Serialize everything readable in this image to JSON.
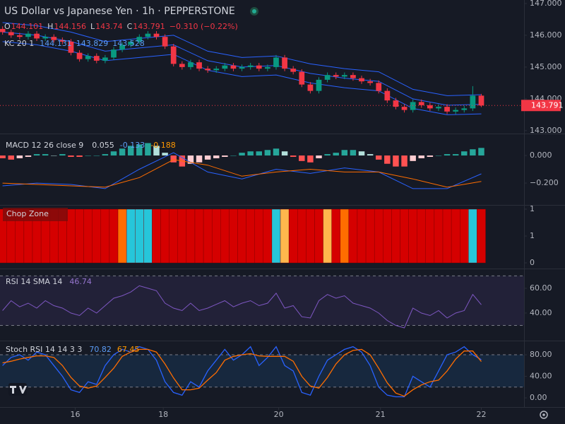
{
  "chart_data": [
    {
      "type": "candlestick",
      "title": "US Dollar vs Japanese Yen · 1h · PEPPERSTONE",
      "ohlc_labels": [
        "O",
        "H",
        "L",
        "C"
      ],
      "change": "−0.310 (−0.22%)",
      "up_color": "#089981",
      "down_color": "#f23645",
      "open": [
        146.2,
        146.1,
        146.0,
        145.95,
        146.05,
        145.9,
        145.95,
        145.85,
        145.8,
        145.45,
        145.25,
        145.35,
        145.2,
        145.3,
        145.55,
        145.7,
        145.8,
        145.95,
        146.05,
        145.95,
        145.65,
        145.1,
        145.0,
        145.15,
        144.95,
        144.9,
        144.95,
        145.05,
        144.95,
        145.0,
        145.05,
        144.95,
        145.0,
        145.3,
        144.95,
        144.85,
        144.45,
        144.25,
        144.6,
        144.75,
        144.7,
        144.75,
        144.65,
        144.55,
        144.5,
        144.25,
        143.95,
        143.75,
        143.65,
        143.9,
        143.8,
        143.7,
        143.75,
        143.6,
        143.65,
        143.7,
        144.101
      ],
      "high": [
        146.28,
        146.18,
        146.08,
        146.13,
        146.13,
        146.03,
        146.03,
        145.93,
        145.88,
        145.53,
        145.43,
        145.43,
        145.38,
        145.63,
        145.78,
        145.88,
        146.03,
        146.13,
        146.13,
        146.03,
        145.73,
        145.18,
        145.23,
        145.23,
        145.03,
        145.03,
        145.13,
        145.13,
        145.08,
        145.13,
        145.13,
        145.08,
        145.38,
        145.38,
        145.03,
        144.93,
        144.53,
        144.68,
        144.83,
        144.83,
        144.83,
        144.83,
        144.73,
        144.63,
        144.58,
        144.33,
        144.03,
        143.83,
        143.98,
        143.98,
        143.88,
        143.83,
        143.83,
        143.73,
        143.78,
        144.4,
        144.156
      ],
      "low": [
        146.02,
        145.92,
        145.87,
        145.87,
        145.82,
        145.82,
        145.77,
        145.72,
        145.37,
        145.17,
        145.17,
        145.12,
        145.12,
        145.22,
        145.47,
        145.62,
        145.72,
        145.87,
        145.87,
        145.57,
        145.02,
        144.92,
        144.92,
        144.87,
        144.82,
        144.82,
        144.87,
        144.87,
        144.87,
        144.92,
        144.87,
        144.87,
        144.92,
        144.87,
        144.77,
        144.37,
        144.17,
        144.17,
        144.52,
        144.62,
        144.62,
        144.57,
        144.47,
        144.42,
        144.17,
        143.87,
        143.67,
        143.57,
        143.57,
        143.72,
        143.62,
        143.62,
        143.52,
        143.52,
        143.57,
        143.62,
        143.74
      ],
      "close": [
        146.1,
        146.0,
        145.95,
        146.05,
        145.9,
        145.95,
        145.85,
        145.8,
        145.45,
        145.25,
        145.35,
        145.2,
        145.3,
        145.55,
        145.7,
        145.8,
        145.95,
        146.05,
        145.95,
        145.65,
        145.1,
        145.0,
        145.15,
        144.95,
        144.9,
        144.95,
        145.05,
        144.95,
        145.0,
        145.05,
        144.95,
        145.0,
        145.3,
        144.95,
        144.85,
        144.45,
        144.25,
        144.6,
        144.75,
        144.7,
        144.75,
        144.65,
        144.55,
        144.5,
        144.25,
        143.95,
        143.75,
        143.65,
        143.9,
        143.8,
        143.7,
        143.75,
        143.6,
        143.65,
        143.7,
        144.1,
        143.791
      ],
      "overlay": {
        "label": "KC 20 1",
        "x": [
          0,
          4,
          8,
          12,
          16,
          20,
          24,
          28,
          32,
          36,
          40,
          44,
          48,
          52,
          56
        ],
        "series": [
          {
            "color": "#2962ff",
            "values": [
              146.4,
              146.3,
              146.1,
              145.8,
              145.9,
              146.0,
              145.5,
              145.3,
              145.35,
              145.1,
              144.95,
              144.85,
              144.3,
              144.1,
              144.131
            ]
          },
          {
            "color": "#2962ff",
            "values": [
              146.1,
              146.0,
              145.8,
              145.5,
              145.6,
              145.7,
              145.2,
              145.0,
              145.05,
              144.8,
              144.65,
              144.55,
              144.0,
              143.8,
              143.829
            ]
          },
          {
            "color": "#2962ff",
            "values": [
              145.8,
              145.7,
              145.5,
              145.2,
              145.3,
              145.4,
              144.9,
              144.7,
              144.75,
              144.5,
              144.35,
              144.25,
              143.7,
              143.5,
              143.528
            ]
          }
        ]
      },
      "xlim": [
        -0.3,
        61
      ],
      "xticks": [
        {
          "value": 8.5,
          "label": "16"
        },
        {
          "value": 18.8,
          "label": "18"
        },
        {
          "value": 32.3,
          "label": "20"
        },
        {
          "value": 44.2,
          "label": "21"
        },
        {
          "value": 56,
          "label": "22"
        }
      ],
      "ylim": [
        142.93,
        147.11
      ],
      "yticks": [
        {
          "value": 147,
          "label": "147.000"
        },
        {
          "value": 146,
          "label": "146.000"
        },
        {
          "value": 145,
          "label": "145.000"
        },
        {
          "value": 144,
          "label": "144.000"
        },
        {
          "value": 143,
          "label": "143.000"
        }
      ]
    },
    {
      "type": "macd",
      "label": "MACD 12 26 close 9",
      "histogram": [
        -0.02,
        -0.03,
        -0.02,
        -0.01,
        0.01,
        0.01,
        0.0,
        0.01,
        -0.01,
        -0.01,
        0.0,
        0.0,
        0.01,
        0.03,
        0.05,
        0.07,
        0.08,
        0.09,
        0.07,
        0.02,
        -0.05,
        -0.08,
        -0.06,
        -0.05,
        -0.03,
        -0.02,
        -0.01,
        0.0,
        0.02,
        0.03,
        0.03,
        0.04,
        0.05,
        0.03,
        -0.01,
        -0.04,
        -0.05,
        -0.02,
        0.01,
        0.02,
        0.04,
        0.04,
        0.03,
        0.01,
        -0.03,
        -0.06,
        -0.08,
        -0.08,
        -0.04,
        -0.02,
        -0.01,
        0.0,
        0.01,
        0.01,
        0.03,
        0.045,
        0.055
      ],
      "x": [
        0,
        4,
        8,
        12,
        16,
        20,
        24,
        28,
        32,
        36,
        40,
        44,
        48,
        52,
        56
      ],
      "series": [
        {
          "color": "#2962ff",
          "values": [
            -0.22,
            -0.2,
            -0.21,
            -0.24,
            -0.1,
            0.02,
            -0.12,
            -0.17,
            -0.1,
            -0.13,
            -0.09,
            -0.12,
            -0.24,
            -0.24,
            -0.133
          ]
        },
        {
          "color": "#ff6d00",
          "values": [
            -0.2,
            -0.21,
            -0.22,
            -0.23,
            -0.16,
            -0.03,
            -0.07,
            -0.15,
            -0.12,
            -0.1,
            -0.12,
            -0.12,
            -0.17,
            -0.23,
            -0.188
          ]
        }
      ],
      "ylim": [
        -0.333,
        0.154
      ],
      "yticks": [
        {
          "value": 0,
          "label": "0.000"
        },
        {
          "value": -0.2,
          "label": "−0.200"
        }
      ]
    },
    {
      "type": "chop",
      "label": "Chop Zone",
      "values": [
        1,
        1,
        1,
        1,
        1,
        1,
        1,
        1,
        1,
        1,
        1,
        1,
        1,
        1,
        1,
        1,
        1,
        1,
        1,
        1,
        1,
        1,
        1,
        1,
        1,
        1,
        1,
        1,
        1,
        1,
        1,
        1,
        1,
        1,
        1,
        1,
        1,
        1,
        1,
        1,
        1,
        1,
        1,
        1,
        1,
        1,
        1,
        1,
        1,
        1,
        1,
        1,
        1,
        1,
        1,
        1,
        1
      ],
      "colors": [
        "#d50000",
        "#d50000",
        "#d50000",
        "#d50000",
        "#d50000",
        "#d50000",
        "#d50000",
        "#d50000",
        "#d50000",
        "#d50000",
        "#d50000",
        "#d50000",
        "#d50000",
        "#d50000",
        "#ff6d00",
        "#26c6da",
        "#26c6da",
        "#26c6da",
        "#d50000",
        "#d50000",
        "#d50000",
        "#d50000",
        "#d50000",
        "#d50000",
        "#d50000",
        "#d50000",
        "#d50000",
        "#d50000",
        "#d50000",
        "#d50000",
        "#d50000",
        "#d50000",
        "#26c6da",
        "#ffb74d",
        "#d50000",
        "#d50000",
        "#d50000",
        "#d50000",
        "#ffb74d",
        "#d50000",
        "#ff6d00",
        "#d50000",
        "#d50000",
        "#d50000",
        "#d50000",
        "#d50000",
        "#d50000",
        "#d50000",
        "#d50000",
        "#d50000",
        "#d50000",
        "#d50000",
        "#d50000",
        "#d50000",
        "#d50000",
        "#26c6da",
        "#d50000"
      ],
      "ylim": [
        0,
        1
      ],
      "yticks": [
        1,
        {
          "value": 0.5,
          "label": "1"
        },
        0
      ]
    },
    {
      "type": "rsi",
      "label": "RSI 14 SMA 14",
      "color": "#7e57c2",
      "band": [
        30,
        70
      ],
      "values": [
        42,
        50,
        45,
        48,
        44,
        50,
        46,
        44,
        40,
        38,
        44,
        40,
        46,
        52,
        54,
        57,
        62,
        60,
        58,
        48,
        44,
        42,
        48,
        42,
        44,
        47,
        50,
        45,
        48,
        50,
        46,
        48,
        56,
        44,
        46,
        37,
        36,
        50,
        55,
        52,
        54,
        48,
        46,
        44,
        40,
        34,
        30,
        28,
        44,
        40,
        38,
        42,
        36,
        40,
        42,
        55,
        46.74
      ],
      "ylim": [
        20,
        73.1
      ],
      "yticks": [
        {
          "value": 60,
          "label": "60.00"
        },
        {
          "value": 40,
          "label": "40.00"
        }
      ]
    },
    {
      "type": "stoch",
      "label": "Stoch RSI 14 14 3 3",
      "band": [
        20,
        80
      ],
      "series": [
        {
          "color": "#2962ff",
          "values": [
            60,
            75,
            80,
            70,
            85,
            80,
            60,
            40,
            15,
            10,
            30,
            25,
            60,
            80,
            90,
            85,
            95,
            90,
            70,
            30,
            10,
            5,
            30,
            20,
            50,
            70,
            90,
            70,
            80,
            95,
            60,
            75,
            95,
            60,
            50,
            10,
            5,
            40,
            70,
            80,
            90,
            95,
            85,
            60,
            20,
            5,
            2,
            2,
            40,
            30,
            20,
            50,
            80,
            85,
            95,
            80,
            70.82
          ]
        },
        {
          "color": "#ff6d00",
          "values": [
            65,
            68,
            72,
            75,
            78,
            78,
            75,
            60,
            38,
            22,
            18,
            22,
            38,
            55,
            77,
            85,
            90,
            90,
            85,
            63,
            37,
            15,
            15,
            18,
            33,
            47,
            70,
            77,
            80,
            82,
            78,
            77,
            77,
            77,
            68,
            40,
            22,
            18,
            38,
            63,
            80,
            88,
            90,
            80,
            55,
            28,
            9,
            3,
            15,
            24,
            30,
            33,
            50,
            72,
            87,
            87,
            67.45
          ]
        }
      ],
      "ylim": [
        -15.7,
        98.4
      ],
      "yticks": [
        {
          "value": 80,
          "label": "80.00"
        },
        {
          "value": 40,
          "label": "40.00"
        },
        {
          "value": 0,
          "label": "0.00"
        }
      ]
    }
  ]
}
